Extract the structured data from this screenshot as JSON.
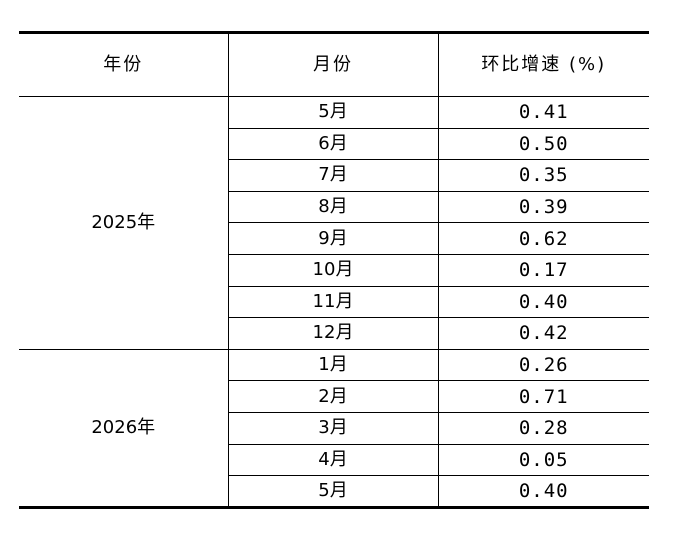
{
  "table": {
    "headers": [
      "年份",
      "月份",
      "环比增速 (%)"
    ],
    "groups": [
      {
        "year": "2025年",
        "rows": [
          {
            "month": "5月",
            "rate": "0.41"
          },
          {
            "month": "6月",
            "rate": "0.50"
          },
          {
            "month": "7月",
            "rate": "0.35"
          },
          {
            "month": "8月",
            "rate": "0.39"
          },
          {
            "month": "9月",
            "rate": "0.62"
          },
          {
            "month": "10月",
            "rate": "0.17"
          },
          {
            "month": "11月",
            "rate": "0.40"
          },
          {
            "month": "12月",
            "rate": "0.42"
          }
        ]
      },
      {
        "year": "2026年",
        "rows": [
          {
            "month": "1月",
            "rate": "0.26"
          },
          {
            "month": "2月",
            "rate": "0.71"
          },
          {
            "month": "3月",
            "rate": "0.28"
          },
          {
            "month": "4月",
            "rate": "0.05"
          },
          {
            "month": "5月",
            "rate": "0.40"
          }
        ]
      }
    ]
  }
}
